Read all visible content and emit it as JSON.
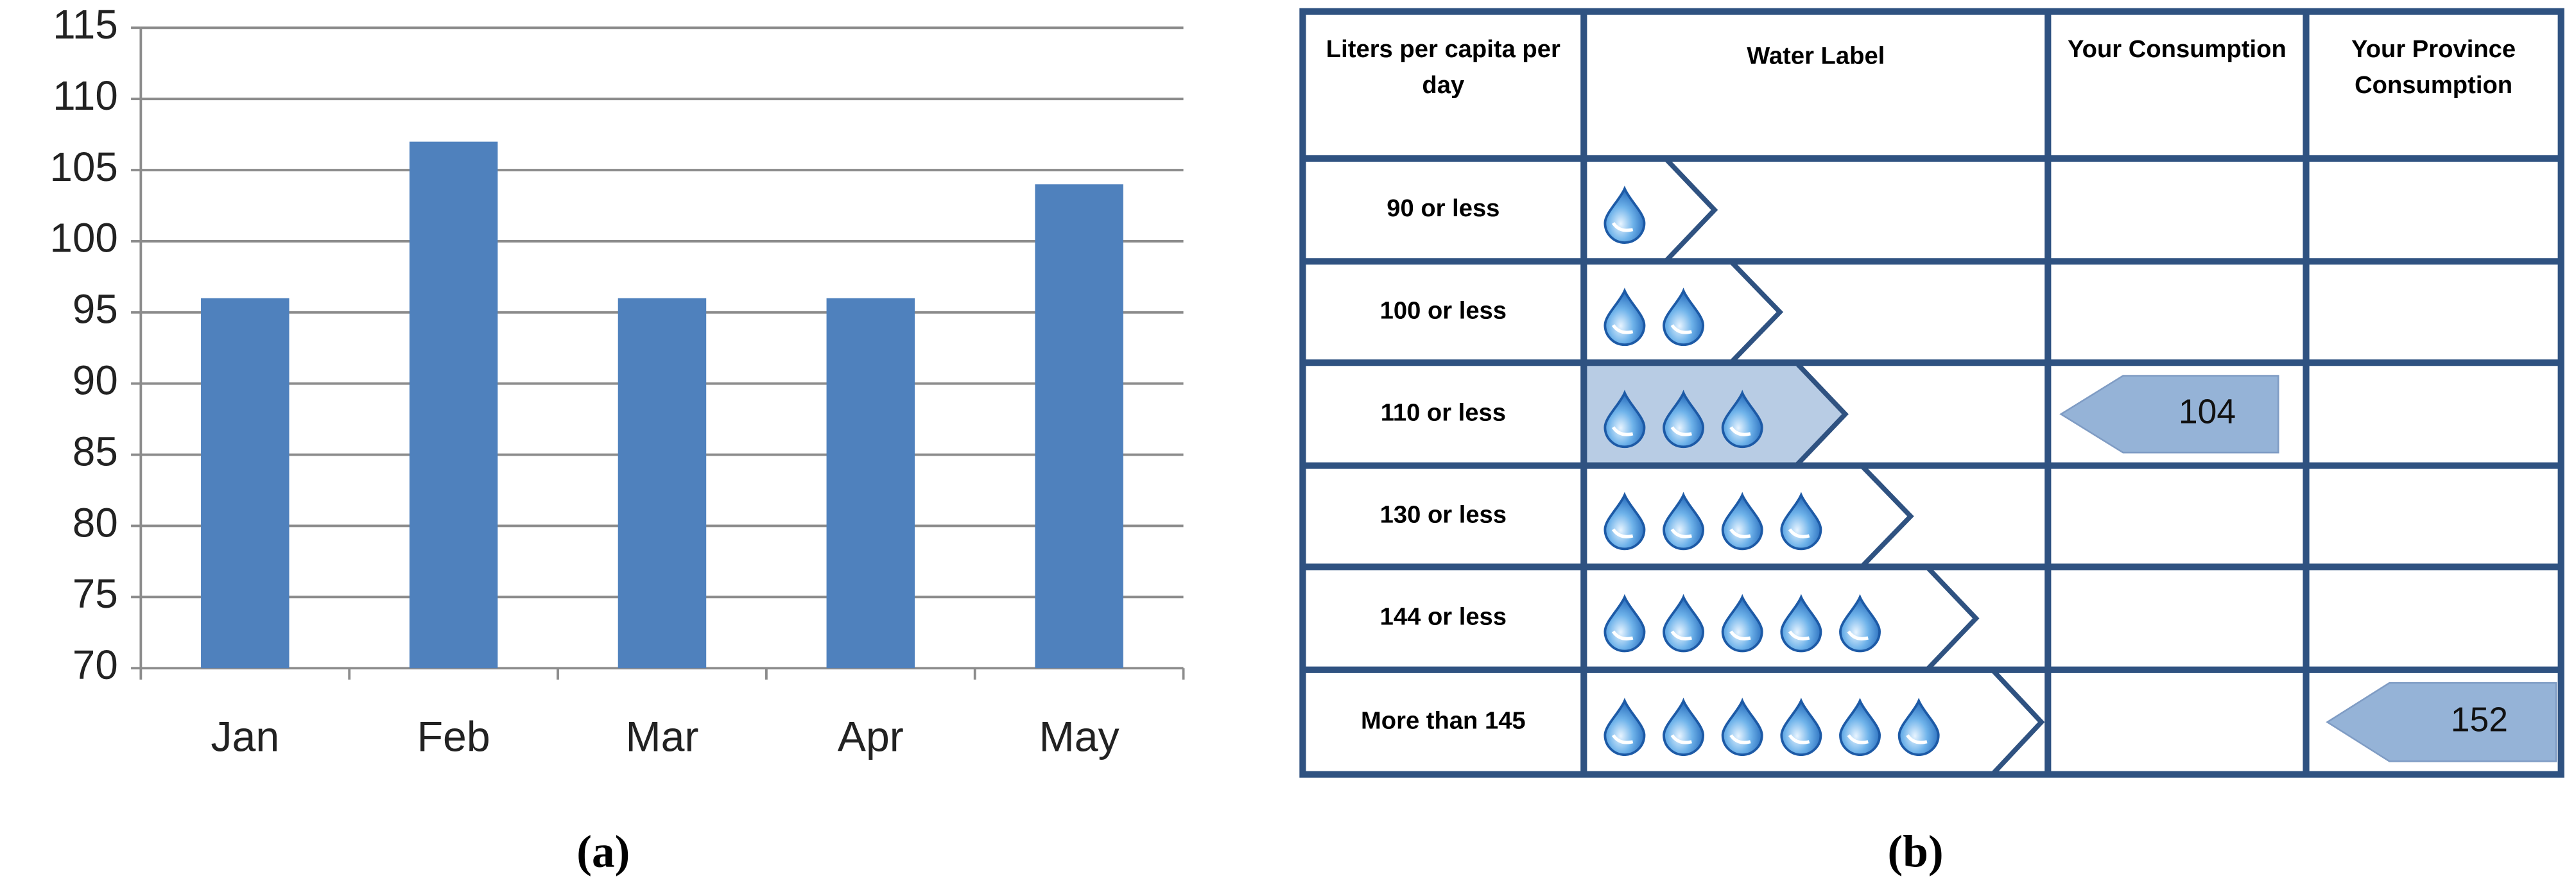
{
  "chart_data": {
    "type": "bar",
    "categories": [
      "Jan",
      "Feb",
      "Mar",
      "Apr",
      "May"
    ],
    "values": [
      96,
      107,
      96,
      96,
      104
    ],
    "color": "#4f81bd",
    "ylim": [
      70,
      115
    ],
    "yticks": [
      70,
      75,
      80,
      85,
      90,
      95,
      100,
      105,
      110,
      115
    ],
    "grid": true,
    "caption": "(a)"
  },
  "table": {
    "caption": "(b)",
    "header": [
      "Liters per capita per day",
      "Water Label",
      "Your Consumption",
      "Your Province Consumption"
    ],
    "rows": [
      {
        "label": "90 or less"
      },
      {
        "label": "100 or less"
      },
      {
        "label": "110 or less",
        "your_consumption": 104
      },
      {
        "label": "130 or less"
      },
      {
        "label": "144 or less"
      },
      {
        "label": "More than 145",
        "province_consumption": 152
      }
    ]
  }
}
